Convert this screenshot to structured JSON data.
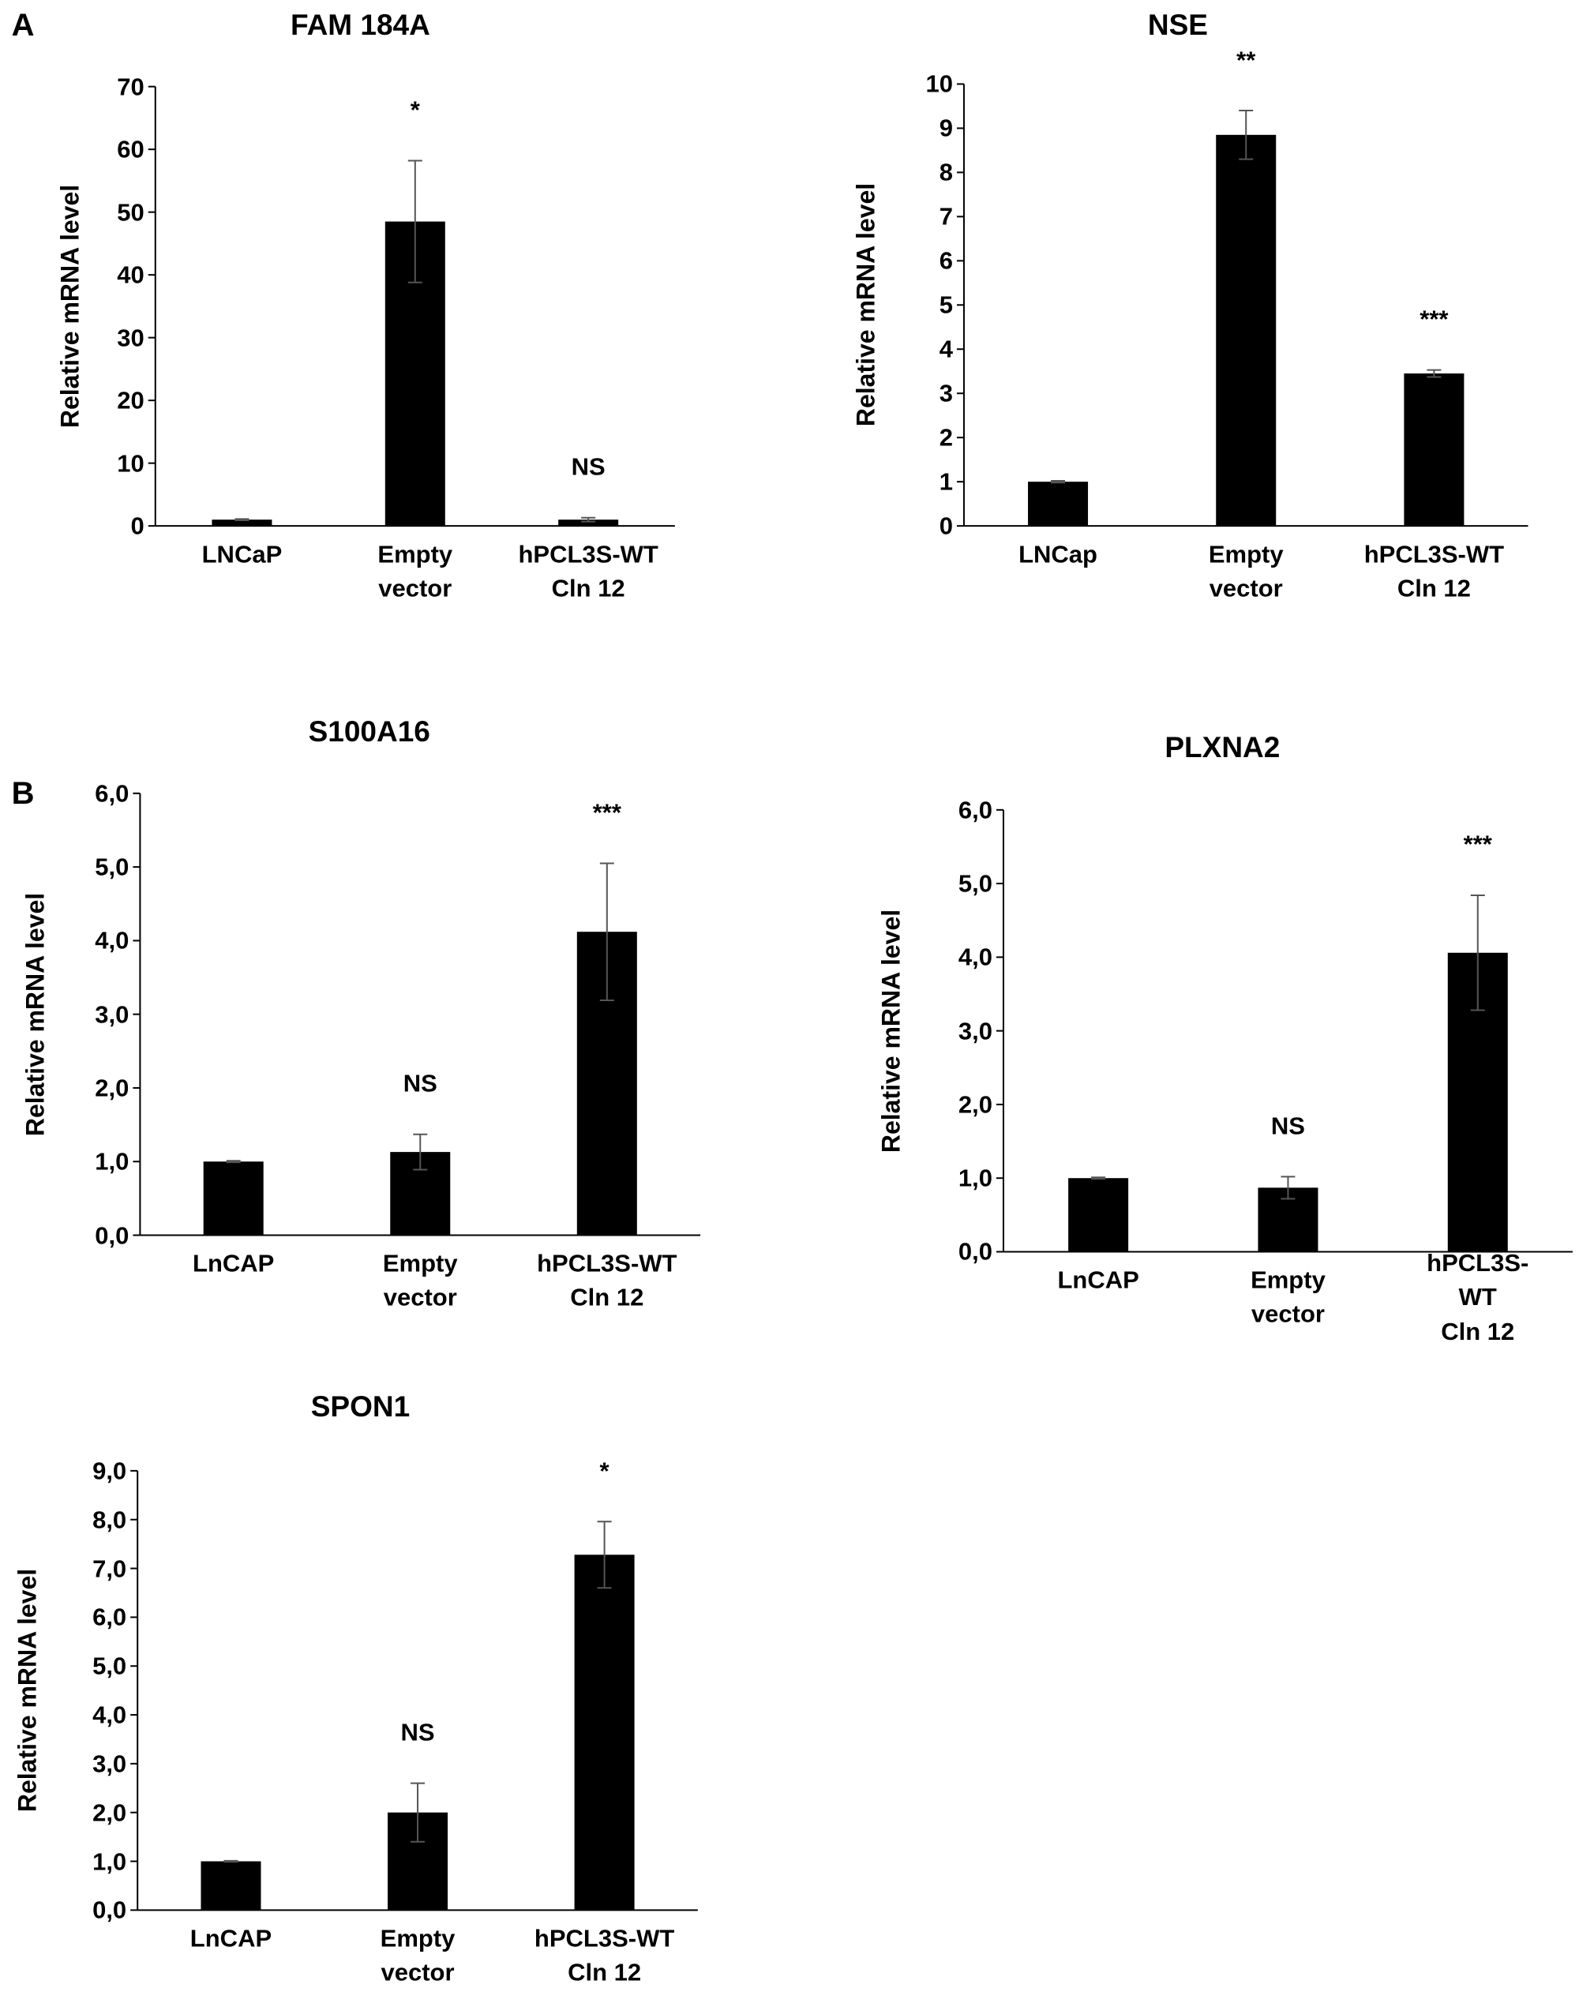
{
  "chart_data": [
    {
      "type": "bar",
      "panel": "A",
      "title": "FAM 184A",
      "ylabel": "Relative mRNA level",
      "categories": [
        "LNCaP",
        "Empty\nvector",
        "hPCL3S-WT\nCln 12"
      ],
      "values": [
        1,
        48.5,
        1
      ],
      "errors": [
        0.1,
        9.7,
        0.3
      ],
      "annotations": [
        null,
        "*",
        "NS"
      ],
      "color": "#000000",
      "ylim": [
        0,
        70
      ],
      "yticks": [
        0,
        10,
        20,
        30,
        40,
        50,
        60,
        70
      ],
      "grid": false
    },
    {
      "type": "bar",
      "title": "NSE",
      "ylabel": "Relative mRNA level",
      "categories": [
        "LNCap",
        "Empty\nvector",
        "hPCL3S-WT\nCln 12"
      ],
      "values": [
        1,
        8.85,
        3.45
      ],
      "errors": [
        0.02,
        0.55,
        0.08
      ],
      "annotations": [
        null,
        "**",
        "***"
      ],
      "color": "#000000",
      "ylim": [
        0,
        10
      ],
      "yticks": [
        0,
        1,
        2,
        3,
        4,
        5,
        6,
        7,
        8,
        9,
        10
      ],
      "grid": false
    },
    {
      "type": "bar",
      "panel": "B",
      "title": "S100A16",
      "ylabel": "Relative mRNA level",
      "categories": [
        "LnCAP",
        "Empty\nvector",
        "hPCL3S-WT\nCln 12"
      ],
      "values": [
        1.0,
        1.13,
        4.12
      ],
      "errors": [
        0.01,
        0.24,
        0.93
      ],
      "annotations": [
        null,
        "NS",
        "***"
      ],
      "color": "#000000",
      "ylim": [
        0,
        6
      ],
      "yticks": [
        {
          "value": 0,
          "label": "0,0"
        },
        {
          "value": 1,
          "label": "1,0"
        },
        {
          "value": 2,
          "label": "2,0"
        },
        {
          "value": 3,
          "label": "3,0"
        },
        {
          "value": 4,
          "label": "4,0"
        },
        {
          "value": 5,
          "label": "5,0"
        },
        {
          "value": 6,
          "label": "6,0"
        }
      ],
      "grid": false
    },
    {
      "type": "bar",
      "title": "PLXNA2",
      "ylabel": "Relative mRNA level",
      "categories": [
        "LnCAP",
        "Empty\nvector",
        "hPCL3S-WT\nCln 12"
      ],
      "values": [
        1.0,
        0.87,
        4.06
      ],
      "errors": [
        0.01,
        0.15,
        0.78
      ],
      "annotations": [
        null,
        "NS",
        "***"
      ],
      "color": "#000000",
      "ylim": [
        0,
        6
      ],
      "yticks": [
        {
          "value": 0,
          "label": "0,0"
        },
        {
          "value": 1,
          "label": "1,0"
        },
        {
          "value": 2,
          "label": "2,0"
        },
        {
          "value": 3,
          "label": "3,0"
        },
        {
          "value": 4,
          "label": "4,0"
        },
        {
          "value": 5,
          "label": "5,0"
        },
        {
          "value": 6,
          "label": "6,0"
        }
      ],
      "grid": false
    },
    {
      "type": "bar",
      "title": "SPON1",
      "ylabel": "Relative mRNA level",
      "categories": [
        "LnCAP",
        "Empty\nvector",
        "hPCL3S-WT\nCln 12"
      ],
      "values": [
        1.0,
        2.0,
        7.28
      ],
      "errors": [
        0.01,
        0.6,
        0.68
      ],
      "annotations": [
        null,
        "NS",
        "*"
      ],
      "color": "#000000",
      "ylim": [
        0,
        9
      ],
      "yticks": [
        {
          "value": 0,
          "label": "0,0"
        },
        {
          "value": 1,
          "label": "1,0"
        },
        {
          "value": 2,
          "label": "2,0"
        },
        {
          "value": 3,
          "label": "3,0"
        },
        {
          "value": 4,
          "label": "4,0"
        },
        {
          "value": 5,
          "label": "5,0"
        },
        {
          "value": 6,
          "label": "6,0"
        },
        {
          "value": 7,
          "label": "7,0"
        },
        {
          "value": 8,
          "label": "8,0"
        },
        {
          "value": 9,
          "label": "9,0"
        }
      ],
      "grid": false
    }
  ]
}
